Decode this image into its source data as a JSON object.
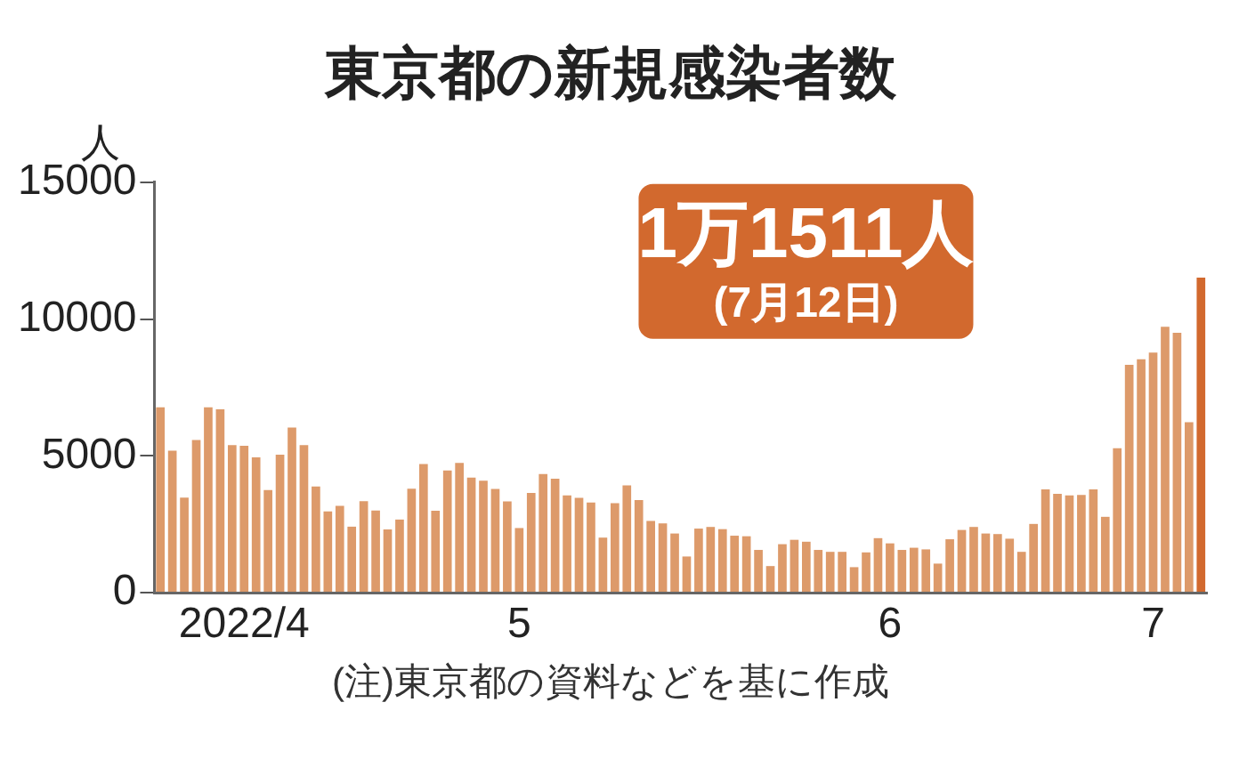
{
  "chart_data": {
    "type": "bar",
    "title": "東京都の新規感染者数",
    "ylabel": "人",
    "categories": [
      null,
      null,
      null,
      null,
      null,
      null,
      null,
      "2022/4",
      null,
      null,
      null,
      null,
      null,
      null,
      null,
      null,
      null,
      null,
      null,
      null,
      null,
      null,
      null,
      null,
      null,
      null,
      null,
      null,
      null,
      null,
      "5",
      null,
      null,
      null,
      null,
      null,
      null,
      null,
      null,
      null,
      null,
      null,
      null,
      null,
      null,
      null,
      null,
      null,
      null,
      null,
      null,
      null,
      null,
      null,
      null,
      null,
      null,
      null,
      null,
      null,
      null,
      "6",
      null,
      null,
      null,
      null,
      null,
      null,
      null,
      null,
      null,
      null,
      null,
      null,
      null,
      null,
      null,
      null,
      null,
      null,
      null,
      null,
      null,
      "7",
      null,
      null,
      null,
      null
    ],
    "values": [
      6770,
      5190,
      3470,
      5580,
      6770,
      6700,
      5390,
      5370,
      4940,
      3750,
      5040,
      6030,
      5390,
      3880,
      2970,
      3170,
      2410,
      3340,
      3000,
      2310,
      2670,
      3800,
      4700,
      2990,
      4460,
      4740,
      4200,
      4090,
      3790,
      3330,
      2360,
      3640,
      4330,
      4160,
      3550,
      3460,
      3290,
      2010,
      3270,
      3920,
      3380,
      2620,
      2530,
      2160,
      1320,
      2340,
      2400,
      2320,
      2080,
      2060,
      1560,
      970,
      1770,
      1930,
      1860,
      1560,
      1490,
      1490,
      930,
      1470,
      1990,
      1800,
      1560,
      1640,
      1580,
      1060,
      1950,
      2290,
      2400,
      2160,
      2140,
      1970,
      1490,
      2510,
      3770,
      3610,
      3550,
      3570,
      3770,
      2770,
      5280,
      8330,
      8530,
      8770,
      9720,
      9500,
      6230,
      11511
    ],
    "colors": [
      "#dd9a6a",
      "#dd9a6a",
      "#dd9a6a",
      "#dd9a6a",
      "#dd9a6a",
      "#dd9a6a",
      "#dd9a6a",
      "#dd9a6a",
      "#dd9a6a",
      "#dd9a6a",
      "#dd9a6a",
      "#dd9a6a",
      "#dd9a6a",
      "#dd9a6a",
      "#dd9a6a",
      "#dd9a6a",
      "#dd9a6a",
      "#dd9a6a",
      "#dd9a6a",
      "#dd9a6a",
      "#dd9a6a",
      "#dd9a6a",
      "#dd9a6a",
      "#dd9a6a",
      "#dd9a6a",
      "#dd9a6a",
      "#dd9a6a",
      "#dd9a6a",
      "#dd9a6a",
      "#dd9a6a",
      "#dd9a6a",
      "#dd9a6a",
      "#dd9a6a",
      "#dd9a6a",
      "#dd9a6a",
      "#dd9a6a",
      "#dd9a6a",
      "#dd9a6a",
      "#dd9a6a",
      "#dd9a6a",
      "#dd9a6a",
      "#dd9a6a",
      "#dd9a6a",
      "#dd9a6a",
      "#dd9a6a",
      "#dd9a6a",
      "#dd9a6a",
      "#dd9a6a",
      "#dd9a6a",
      "#dd9a6a",
      "#dd9a6a",
      "#dd9a6a",
      "#dd9a6a",
      "#dd9a6a",
      "#dd9a6a",
      "#dd9a6a",
      "#dd9a6a",
      "#dd9a6a",
      "#dd9a6a",
      "#dd9a6a",
      "#dd9a6a",
      "#dd9a6a",
      "#dd9a6a",
      "#dd9a6a",
      "#dd9a6a",
      "#dd9a6a",
      "#dd9a6a",
      "#dd9a6a",
      "#dd9a6a",
      "#dd9a6a",
      "#dd9a6a",
      "#dd9a6a",
      "#dd9a6a",
      "#dd9a6a",
      "#dd9a6a",
      "#dd9a6a",
      "#dd9a6a",
      "#dd9a6a",
      "#dd9a6a",
      "#dd9a6a",
      "#dd9a6a",
      "#dd9a6a",
      "#dd9a6a",
      "#dd9a6a",
      "#dd9a6a",
      "#dd9a6a",
      "#dd9a6a",
      "#d2692e"
    ],
    "ylim": [
      0,
      15000
    ],
    "yticks": [
      0,
      5000,
      10000,
      15000
    ],
    "grid": false,
    "legend": false,
    "annotations": [
      "1万1511人",
      "(7月12日)",
      "(注)東京都の資料などを基に作成"
    ]
  }
}
